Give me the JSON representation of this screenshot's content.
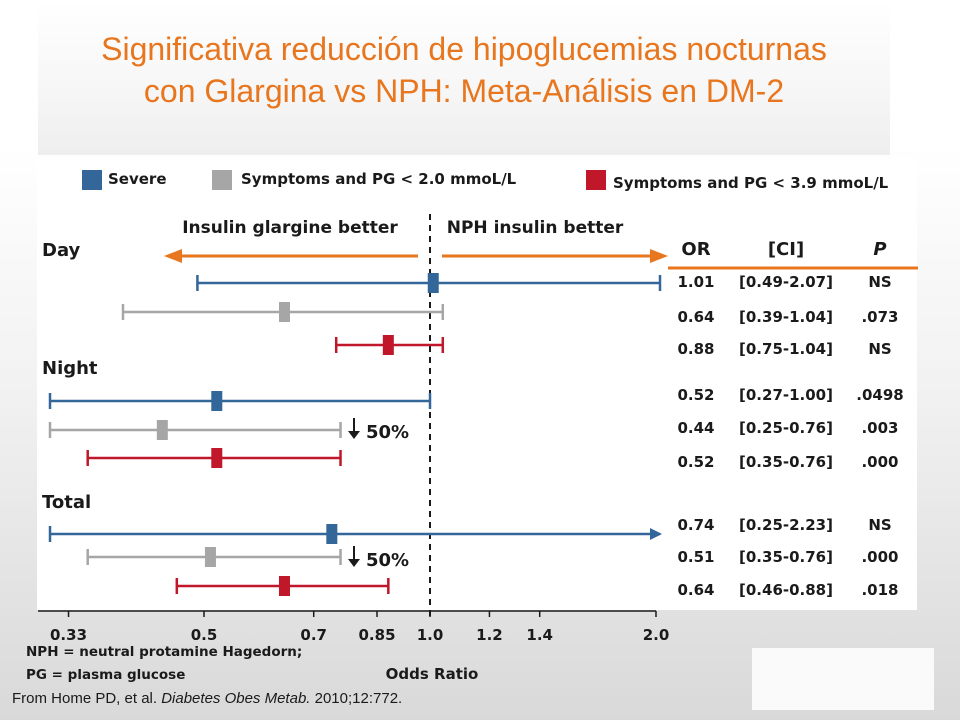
{
  "slide": {
    "title_line1": "Significativa reducción de hipoglucemias nocturnas",
    "title_line2": "con Glargina vs NPH: Meta-Análisis en DM-2",
    "citation_prefix": "From Home PD, et al. ",
    "citation_journal": "Diabetes Obes Metab.",
    "citation_suffix": " 2010;12:772."
  },
  "colors": {
    "title": "#e8761e",
    "severe": "#336699",
    "pg20": "#a6a6a6",
    "pg39": "#c0172b",
    "arrow": "#e8761e"
  },
  "chart_data": {
    "type": "forest",
    "legend": [
      {
        "name": "Severe",
        "color": "#336699"
      },
      {
        "name": "Symptoms and PG < 2.0 mmoL/L",
        "color": "#a6a6a6"
      },
      {
        "name": "Symptoms and PG < 3.9 mmoL/L",
        "color": "#c0172b"
      }
    ],
    "direction_left": "Insulin glargine better",
    "direction_right": "NPH insulin better",
    "table_headers": [
      "OR",
      "[CI]",
      "P"
    ],
    "xlabel": "Odds  Ratio",
    "x_scale": "log",
    "x_ticks": [
      0.33,
      0.5,
      0.7,
      0.85,
      1.0,
      1.2,
      1.4,
      2.0
    ],
    "x_tick_labels": [
      "0.33",
      "0.5",
      "0.7",
      "0.85",
      "1.0",
      "1.2",
      "1.4",
      "2.0"
    ],
    "reference_line": 1.0,
    "groups": [
      {
        "name": "Day",
        "rows": [
          {
            "series": "Severe",
            "or": 1.01,
            "ci": [
              0.49,
              2.07
            ],
            "or_text": "1.01",
            "ci_text": "[0.49-2.07]",
            "p_text": "NS",
            "arrow_right": false
          },
          {
            "series": "Symptoms and PG < 2.0 mmoL/L",
            "or": 0.64,
            "ci": [
              0.39,
              1.04
            ],
            "or_text": "0.64",
            "ci_text": "[0.39-1.04]",
            "p_text": ".073"
          },
          {
            "series": "Symptoms and PG < 3.9 mmoL/L",
            "or": 0.88,
            "ci": [
              0.75,
              1.04
            ],
            "or_text": "0.88",
            "ci_text": "[0.75-1.04]",
            "p_text": "NS"
          }
        ]
      },
      {
        "name": "Night",
        "annotation": "50%",
        "rows": [
          {
            "series": "Severe",
            "or": 0.52,
            "ci": [
              0.27,
              1.0
            ],
            "or_text": "0.52",
            "ci_text": "[0.27-1.00]",
            "p_text": ".0498"
          },
          {
            "series": "Symptoms and PG < 2.0 mmoL/L",
            "or": 0.44,
            "ci": [
              0.25,
              0.76
            ],
            "or_text": "0.44",
            "ci_text": "[0.25-0.76]",
            "p_text": ".003"
          },
          {
            "series": "Symptoms and PG < 3.9 mmoL/L",
            "or": 0.52,
            "ci": [
              0.35,
              0.76
            ],
            "or_text": "0.52",
            "ci_text": "[0.35-0.76]",
            "p_text": ".000"
          }
        ]
      },
      {
        "name": "Total",
        "annotation": "50%",
        "rows": [
          {
            "series": "Severe",
            "or": 0.74,
            "ci": [
              0.25,
              2.23
            ],
            "or_text": "0.74",
            "ci_text": "[0.25-2.23]",
            "p_text": "NS",
            "arrow_right": true
          },
          {
            "series": "Symptoms and PG < 2.0 mmoL/L",
            "or": 0.51,
            "ci": [
              0.35,
              0.76
            ],
            "or_text": "0.51",
            "ci_text": "[0.35-0.76]",
            "p_text": ".000"
          },
          {
            "series": "Symptoms and PG < 3.9 mmoL/L",
            "or": 0.64,
            "ci": [
              0.46,
              0.88
            ],
            "or_text": "0.64",
            "ci_text": "[0.46-0.88]",
            "p_text": ".018"
          }
        ]
      }
    ],
    "footnotes": [
      "NPH = neutral protamine Hagedorn;",
      "PG = plasma glucose"
    ]
  }
}
